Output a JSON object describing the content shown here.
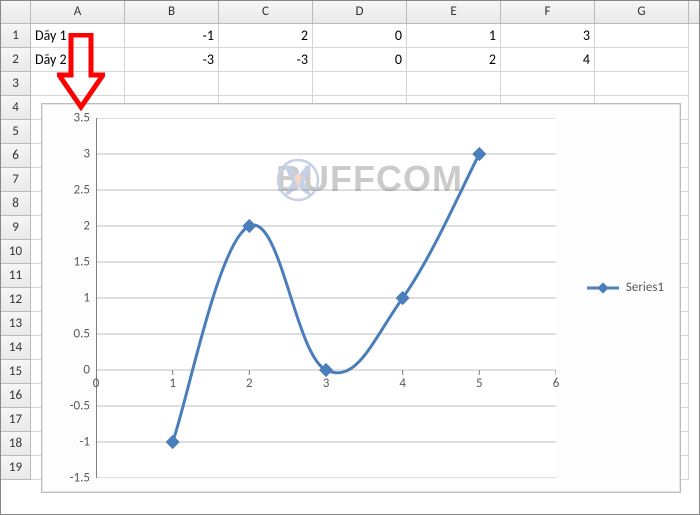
{
  "columns": [
    "A",
    "B",
    "C",
    "D",
    "E",
    "F",
    "G"
  ],
  "rows_count": 19,
  "cells": {
    "r1": {
      "A": "Dãy 1",
      "B": "-1",
      "C": "2",
      "D": "0",
      "E": "1",
      "F": "3"
    },
    "r2": {
      "A": "Dãy 2",
      "B": "-3",
      "C": "-3",
      "D": "0",
      "E": "2",
      "F": "4"
    }
  },
  "arrow": {
    "color": "#ff0000",
    "stroke_width": 4
  },
  "chart": {
    "type": "line",
    "series": [
      {
        "name": "Series1",
        "color": "#4a7ebb",
        "marker": "diamond",
        "line_width": 3,
        "points": [
          {
            "x": 1,
            "y": -1
          },
          {
            "x": 2,
            "y": 2
          },
          {
            "x": 3,
            "y": 0
          },
          {
            "x": 4,
            "y": 1
          },
          {
            "x": 5,
            "y": 3
          }
        ]
      }
    ],
    "x_axis": {
      "min": 0,
      "max": 6,
      "ticks": [
        0,
        1,
        2,
        3,
        4,
        5,
        6
      ]
    },
    "y_axis": {
      "min": -1.5,
      "max": 3.5,
      "ticks": [
        -1.5,
        -1,
        -0.5,
        0,
        0.5,
        1,
        1.5,
        2,
        2.5,
        3,
        3.5
      ]
    },
    "grid_color": "#bfbfbf",
    "axis_color": "#808080",
    "label_color": "#595959",
    "label_fontsize": 13,
    "background": "#ffffff",
    "legend": {
      "label": "Series1",
      "position": "right"
    }
  },
  "watermark": {
    "text": "BUFFCOM",
    "icon_color_primary": "#254a9b",
    "icon_color_secondary": "#d95b2e"
  }
}
